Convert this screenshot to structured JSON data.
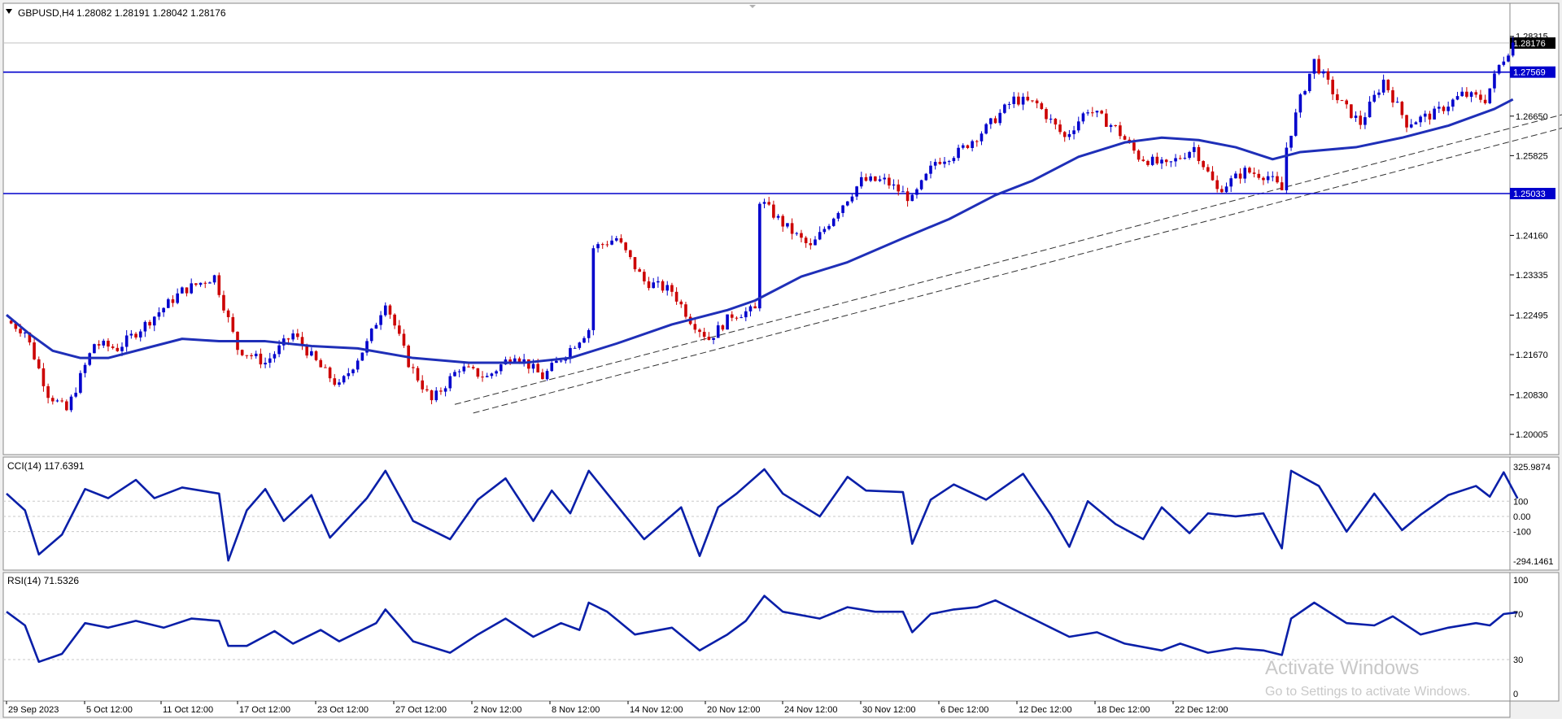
{
  "header": {
    "symbol_timeframe": "GBPUSD,H4",
    "ohlc": "1.28082 1.28191 1.28042 1.28176"
  },
  "colors": {
    "bull_candle": "#0000cc",
    "bear_candle": "#cc0000",
    "moving_average": "#1f2fb8",
    "support_line": "#0000cc",
    "price_tag_bg": "#0000cc",
    "last_price_tag_bg": "#000000",
    "trendline": "#333333",
    "indicator_line": "#0a1fa8"
  },
  "watermark": {
    "line1": "Activate Windows",
    "line2": "Go to Settings to activate Windows."
  },
  "chart_data": [
    {
      "type": "candlestick",
      "name": "GBPUSD,H4",
      "ylim": [
        1.1965,
        1.2865
      ],
      "y_ticks": [
        "1.28315",
        "1.26650",
        "1.25825",
        "1.24160",
        "1.23335",
        "1.22495",
        "1.21670",
        "1.20830",
        "1.20005"
      ],
      "x_ticks": [
        "29 Sep 2023",
        "5 Oct 12:00",
        "11 Oct 12:00",
        "17 Oct 12:00",
        "23 Oct 12:00",
        "27 Oct 12:00",
        "2 Nov 12:00",
        "8 Nov 12:00",
        "14 Nov 12:00",
        "20 Nov 12:00",
        "24 Nov 12:00",
        "30 Nov 12:00",
        "6 Dec 12:00",
        "12 Dec 12:00",
        "18 Dec 12:00",
        "22 Dec 12:00"
      ],
      "close_path": [
        [
          0,
          1.2238
        ],
        [
          4,
          1.2215
        ],
        [
          9,
          1.2085
        ],
        [
          13,
          1.205
        ],
        [
          19,
          1.219
        ],
        [
          24,
          1.218
        ],
        [
          30,
          1.223
        ],
        [
          38,
          1.23
        ],
        [
          45,
          1.233
        ],
        [
          50,
          1.218
        ],
        [
          56,
          1.215
        ],
        [
          62,
          1.221
        ],
        [
          68,
          1.214
        ],
        [
          72,
          1.21
        ],
        [
          78,
          1.219
        ],
        [
          82,
          1.228
        ],
        [
          87,
          1.215
        ],
        [
          92,
          1.207
        ],
        [
          98,
          1.214
        ],
        [
          104,
          1.212
        ],
        [
          110,
          1.217
        ],
        [
          116,
          1.212
        ],
        [
          122,
          1.218
        ],
        [
          126,
          1.222
        ],
        [
          127,
          1.239
        ],
        [
          132,
          1.241
        ],
        [
          138,
          1.232
        ],
        [
          144,
          1.23
        ],
        [
          148,
          1.224
        ],
        [
          152,
          1.22
        ],
        [
          157,
          1.225
        ],
        [
          162,
          1.226
        ],
        [
          163,
          1.249
        ],
        [
          168,
          1.244
        ],
        [
          174,
          1.239
        ],
        [
          180,
          1.247
        ],
        [
          185,
          1.253
        ],
        [
          190,
          1.253
        ],
        [
          196,
          1.249
        ],
        [
          201,
          1.257
        ],
        [
          206,
          1.259
        ],
        [
          212,
          1.264
        ],
        [
          218,
          1.27
        ],
        [
          223,
          1.269
        ],
        [
          229,
          1.262
        ],
        [
          234,
          1.268
        ],
        [
          240,
          1.264
        ],
        [
          245,
          1.258
        ],
        [
          251,
          1.256
        ],
        [
          257,
          1.26
        ],
        [
          262,
          1.251
        ],
        [
          268,
          1.255
        ],
        [
          273,
          1.254
        ],
        [
          276,
          1.251
        ],
        [
          277,
          1.26
        ],
        [
          280,
          1.27
        ],
        [
          283,
          1.278
        ],
        [
          288,
          1.27
        ],
        [
          293,
          1.265
        ],
        [
          298,
          1.274
        ],
        [
          303,
          1.265
        ],
        [
          309,
          1.267
        ],
        [
          315,
          1.271
        ],
        [
          320,
          1.27
        ],
        [
          323,
          1.277
        ],
        [
          326,
          1.2818
        ]
      ],
      "series": [
        {
          "name": "moving average",
          "points": [
            [
              0,
              1.225
            ],
            [
              5,
              1.221
            ],
            [
              10,
              1.2175
            ],
            [
              16,
              1.216
            ],
            [
              22,
              1.216
            ],
            [
              30,
              1.218
            ],
            [
              38,
              1.22
            ],
            [
              46,
              1.2195
            ],
            [
              56,
              1.2195
            ],
            [
              66,
              1.2185
            ],
            [
              76,
              1.218
            ],
            [
              88,
              1.216
            ],
            [
              100,
              1.215
            ],
            [
              112,
              1.215
            ],
            [
              122,
              1.216
            ],
            [
              132,
              1.219
            ],
            [
              144,
              1.223
            ],
            [
              156,
              1.226
            ],
            [
              162,
              1.228
            ],
            [
              172,
              1.233
            ],
            [
              182,
              1.236
            ],
            [
              194,
              1.241
            ],
            [
              204,
              1.245
            ],
            [
              214,
              1.25
            ],
            [
              222,
              1.253
            ],
            [
              232,
              1.258
            ],
            [
              242,
              1.261
            ],
            [
              250,
              1.262
            ],
            [
              258,
              1.2615
            ],
            [
              266,
              1.26
            ],
            [
              274,
              1.2575
            ],
            [
              280,
              1.259
            ],
            [
              292,
              1.26
            ],
            [
              302,
              1.262
            ],
            [
              312,
              1.2645
            ],
            [
              322,
              1.268
            ],
            [
              326,
              1.27
            ]
          ]
        }
      ],
      "horizontal_levels": [
        {
          "price": 1.27569,
          "label": "1.27569"
        },
        {
          "price": 1.25033,
          "label": "1.25033"
        }
      ],
      "last_price": {
        "price": 1.28176,
        "label": "1.28176"
      },
      "trendlines": [
        {
          "from": [
            97,
            1.2063
          ],
          "to": [
            400,
            1.2828
          ]
        },
        {
          "from": [
            101,
            1.2045
          ],
          "to": [
            400,
            1.28
          ]
        }
      ]
    },
    {
      "type": "line",
      "name": "CCI(14) 117.6391",
      "y_ticks": [
        "325.9874",
        "100",
        "0.00",
        "-100",
        "-294.1461"
      ],
      "ylim": [
        -294.1461,
        325.9874
      ],
      "levels": [
        100,
        0,
        -100
      ],
      "points": [
        [
          0,
          150
        ],
        [
          4,
          40
        ],
        [
          7,
          -250
        ],
        [
          12,
          -120
        ],
        [
          17,
          180
        ],
        [
          22,
          120
        ],
        [
          28,
          240
        ],
        [
          32,
          120
        ],
        [
          38,
          190
        ],
        [
          46,
          150
        ],
        [
          48,
          -290
        ],
        [
          52,
          40
        ],
        [
          56,
          180
        ],
        [
          60,
          -30
        ],
        [
          66,
          140
        ],
        [
          70,
          -140
        ],
        [
          78,
          120
        ],
        [
          82,
          300
        ],
        [
          88,
          -30
        ],
        [
          96,
          -150
        ],
        [
          102,
          110
        ],
        [
          108,
          250
        ],
        [
          114,
          -30
        ],
        [
          118,
          170
        ],
        [
          122,
          20
        ],
        [
          126,
          300
        ],
        [
          130,
          150
        ],
        [
          138,
          -150
        ],
        [
          146,
          60
        ],
        [
          150,
          -260
        ],
        [
          154,
          60
        ],
        [
          158,
          150
        ],
        [
          164,
          310
        ],
        [
          168,
          150
        ],
        [
          176,
          0
        ],
        [
          182,
          260
        ],
        [
          186,
          170
        ],
        [
          194,
          160
        ],
        [
          196,
          -180
        ],
        [
          200,
          110
        ],
        [
          205,
          210
        ],
        [
          212,
          110
        ],
        [
          220,
          280
        ],
        [
          226,
          10
        ],
        [
          230,
          -200
        ],
        [
          234,
          100
        ],
        [
          240,
          -50
        ],
        [
          246,
          -150
        ],
        [
          250,
          60
        ],
        [
          256,
          -110
        ],
        [
          260,
          20
        ],
        [
          266,
          0
        ],
        [
          272,
          20
        ],
        [
          276,
          -210
        ],
        [
          278,
          300
        ],
        [
          284,
          200
        ],
        [
          290,
          -100
        ],
        [
          296,
          150
        ],
        [
          302,
          -90
        ],
        [
          306,
          10
        ],
        [
          312,
          140
        ],
        [
          318,
          200
        ],
        [
          321,
          130
        ],
        [
          324,
          290
        ],
        [
          327,
          118
        ]
      ]
    },
    {
      "type": "line",
      "name": "RSI(14) 71.5326",
      "y_ticks": [
        "100",
        "70",
        "30",
        "0"
      ],
      "ylim": [
        0,
        100
      ],
      "levels": [
        70,
        30
      ],
      "points": [
        [
          0,
          72
        ],
        [
          4,
          60
        ],
        [
          7,
          28
        ],
        [
          12,
          35
        ],
        [
          17,
          62
        ],
        [
          22,
          58
        ],
        [
          28,
          64
        ],
        [
          34,
          58
        ],
        [
          40,
          66
        ],
        [
          46,
          64
        ],
        [
          48,
          42
        ],
        [
          52,
          42
        ],
        [
          58,
          55
        ],
        [
          62,
          44
        ],
        [
          68,
          56
        ],
        [
          72,
          46
        ],
        [
          80,
          62
        ],
        [
          82,
          74
        ],
        [
          88,
          46
        ],
        [
          96,
          36
        ],
        [
          102,
          52
        ],
        [
          108,
          66
        ],
        [
          114,
          50
        ],
        [
          120,
          62
        ],
        [
          124,
          56
        ],
        [
          126,
          80
        ],
        [
          130,
          72
        ],
        [
          136,
          52
        ],
        [
          144,
          58
        ],
        [
          150,
          38
        ],
        [
          156,
          52
        ],
        [
          160,
          64
        ],
        [
          164,
          86
        ],
        [
          168,
          72
        ],
        [
          176,
          66
        ],
        [
          182,
          76
        ],
        [
          188,
          72
        ],
        [
          194,
          72
        ],
        [
          196,
          54
        ],
        [
          200,
          70
        ],
        [
          205,
          74
        ],
        [
          210,
          76
        ],
        [
          214,
          82
        ],
        [
          220,
          70
        ],
        [
          226,
          58
        ],
        [
          230,
          50
        ],
        [
          236,
          54
        ],
        [
          242,
          44
        ],
        [
          250,
          38
        ],
        [
          254,
          44
        ],
        [
          260,
          36
        ],
        [
          266,
          40
        ],
        [
          272,
          38
        ],
        [
          276,
          34
        ],
        [
          278,
          66
        ],
        [
          283,
          80
        ],
        [
          290,
          62
        ],
        [
          296,
          60
        ],
        [
          300,
          68
        ],
        [
          306,
          52
        ],
        [
          312,
          58
        ],
        [
          318,
          62
        ],
        [
          321,
          60
        ],
        [
          324,
          70
        ],
        [
          327,
          71.5
        ]
      ]
    }
  ]
}
